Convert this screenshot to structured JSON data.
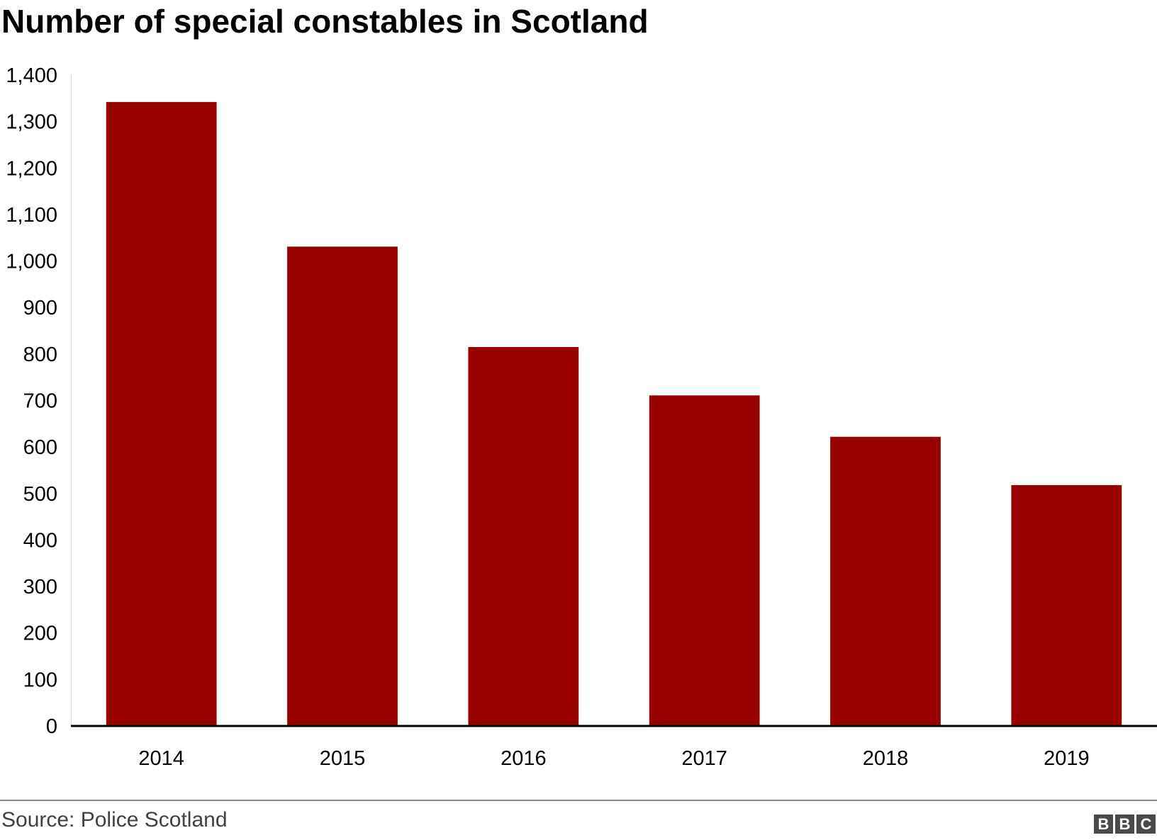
{
  "chart_data": {
    "type": "bar",
    "title": "Number of special constables in Scotland",
    "categories": [
      "2014",
      "2015",
      "2016",
      "2017",
      "2018",
      "2019"
    ],
    "values": [
      1342,
      1031,
      815,
      711,
      622,
      518
    ],
    "xlabel": "",
    "ylabel": "",
    "ylim": [
      0,
      1400
    ],
    "yticks": [
      0,
      100,
      200,
      300,
      400,
      500,
      600,
      700,
      800,
      900,
      1000,
      1100,
      1200,
      1300,
      1400
    ],
    "ytick_labels": [
      "0",
      "100",
      "200",
      "300",
      "400",
      "500",
      "600",
      "700",
      "800",
      "900",
      "1,000",
      "1,100",
      "1,200",
      "1,300",
      "1,400"
    ],
    "grid": false,
    "bar_color": "#990000",
    "source": "Source: Police Scotland"
  },
  "branding": {
    "logo_letters": [
      "B",
      "B",
      "C"
    ]
  }
}
